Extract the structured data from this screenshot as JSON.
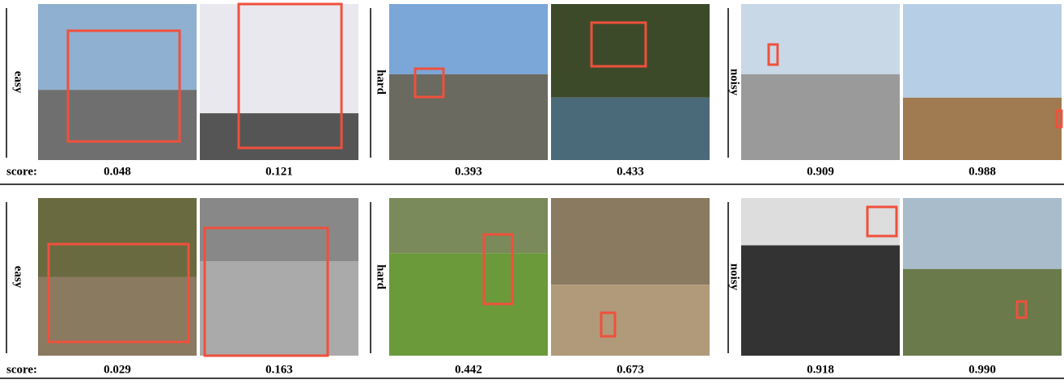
{
  "rows": [
    {
      "groups": [
        {
          "label": "easy",
          "scores": [
            "0.048",
            "0.121"
          ]
        },
        {
          "label": "hard",
          "scores": [
            "0.393",
            "0.433"
          ]
        },
        {
          "label": "noisy",
          "scores": [
            "0.909",
            "0.988"
          ]
        }
      ],
      "score_label": "score:"
    },
    {
      "groups": [
        {
          "label": "easy",
          "scores": [
            "0.029",
            "0.163"
          ]
        },
        {
          "label": "hard",
          "scores": [
            "0.442",
            "0.673"
          ]
        },
        {
          "label": "noisy",
          "scores": [
            "0.918",
            "0.990"
          ]
        }
      ],
      "score_label": "score:"
    }
  ]
}
